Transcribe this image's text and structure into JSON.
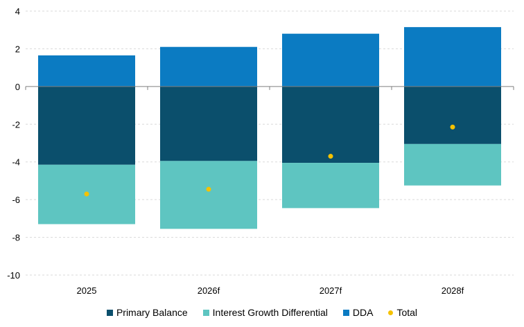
{
  "chart_data": {
    "type": "bar",
    "stacked": true,
    "categories": [
      "2025",
      "2026f",
      "2027f",
      "2028f"
    ],
    "series": [
      {
        "name": "Primary Balance",
        "color": "#0b4f6c",
        "values": [
          -4.15,
          -3.95,
          -4.05,
          -3.05
        ]
      },
      {
        "name": "Interest Growth Differential",
        "color": "#5ec5c1",
        "values": [
          -3.15,
          -3.6,
          -2.4,
          -2.2
        ]
      },
      {
        "name": "DDA",
        "color": "#0b7bc2",
        "values": [
          1.65,
          2.1,
          2.8,
          3.15
        ]
      }
    ],
    "total": {
      "name": "Total",
      "color": "#f5c200",
      "values": [
        -5.7,
        -5.45,
        -3.7,
        -2.15
      ]
    },
    "ylim": [
      -10,
      4
    ],
    "yticks": [
      4,
      2,
      0,
      -2,
      -4,
      -6,
      -8,
      -10
    ],
    "grid": true,
    "legend_position": "bottom",
    "title": "",
    "xlabel": "",
    "ylabel": ""
  }
}
